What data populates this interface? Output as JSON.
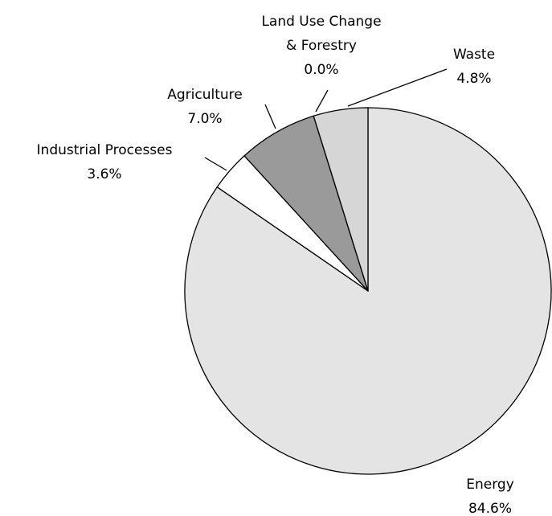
{
  "chart_data": {
    "type": "pie",
    "categories": [
      "Energy",
      "Industrial Processes",
      "Agriculture",
      "Land Use Change & Forestry",
      "Waste"
    ],
    "values": [
      84.6,
      3.6,
      7.0,
      0.0,
      4.8
    ],
    "value_labels": [
      "84.6%",
      "3.6%",
      "7.0%",
      "0.0%",
      "4.8%"
    ],
    "colors": [
      "#e4e4e4",
      "#ffffff",
      "#9a9a9a",
      "#ffffff",
      "#d6d6d6"
    ]
  }
}
